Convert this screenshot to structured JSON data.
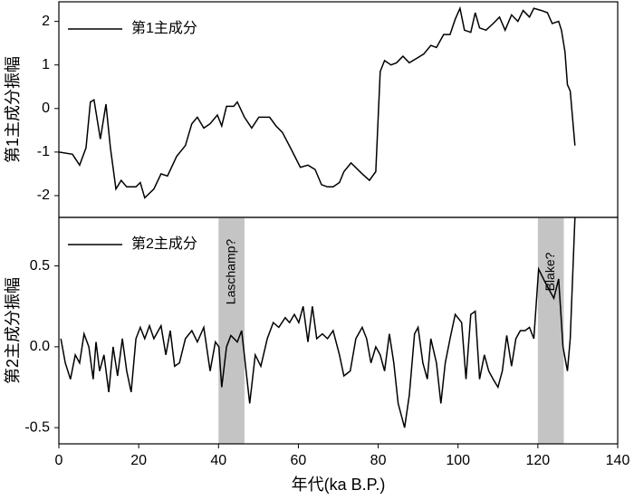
{
  "chart_data": [
    {
      "type": "line",
      "ylabel": "第1主成分振幅",
      "legend": "upper left",
      "xlim": [
        0,
        140
      ],
      "ylim": [
        -2.5,
        2.45
      ],
      "yticks": [
        -2,
        -1,
        0,
        1,
        2
      ],
      "series": [
        {
          "name": "第1主成分",
          "color": "#000000",
          "x": [
            0,
            3.4,
            5.2,
            6.8,
            7.9,
            8.8,
            10.4,
            11.8,
            12.9,
            14.3,
            15.6,
            17,
            19.3,
            20.4,
            21.5,
            23.8,
            25.6,
            27.2,
            29.5,
            31.7,
            33.3,
            34.7,
            36.3,
            37.9,
            39.7,
            40.8,
            42,
            43.8,
            44.7,
            46.5,
            48.3,
            50.1,
            52.8,
            54.4,
            56,
            58.3,
            60.5,
            62.4,
            64.2,
            65.8,
            67.3,
            68.7,
            70.3,
            71.4,
            73.2,
            76,
            77.8,
            79.4,
            80.5,
            81.6,
            83.2,
            84.6,
            86.2,
            87.8,
            89.6,
            91.4,
            93.2,
            94.6,
            96.4,
            98,
            99.3,
            100.5,
            101.6,
            103.2,
            104.3,
            105.4,
            107,
            108.8,
            110.4,
            111.8,
            113.4,
            115,
            116.3,
            117.9,
            119,
            120.9,
            122.4,
            123.6,
            125.2,
            125.9,
            126.8,
            127.4,
            128.1,
            129.3
          ],
          "values": [
            -1.0,
            -1.05,
            -1.3,
            -0.9,
            0.15,
            0.2,
            -0.7,
            0.1,
            -0.9,
            -1.85,
            -1.65,
            -1.8,
            -1.8,
            -1.7,
            -2.05,
            -1.85,
            -1.5,
            -1.55,
            -1.1,
            -0.85,
            -0.35,
            -0.2,
            -0.45,
            -0.35,
            -0.15,
            -0.4,
            0.05,
            0.05,
            0.15,
            -0.2,
            -0.45,
            -0.2,
            -0.2,
            -0.4,
            -0.55,
            -0.95,
            -1.35,
            -1.3,
            -1.4,
            -1.75,
            -1.8,
            -1.8,
            -1.7,
            -1.45,
            -1.25,
            -1.5,
            -1.65,
            -1.45,
            0.85,
            1.1,
            1.0,
            1.05,
            1.2,
            1.05,
            1.15,
            1.25,
            1.45,
            1.4,
            1.7,
            1.7,
            2.05,
            2.3,
            1.8,
            1.75,
            2.2,
            1.85,
            1.8,
            1.95,
            2.1,
            1.8,
            2.15,
            2.0,
            2.25,
            2.1,
            2.3,
            2.25,
            2.2,
            1.95,
            2.0,
            1.8,
            1.3,
            0.55,
            0.4,
            -0.85
          ]
        }
      ]
    },
    {
      "type": "line",
      "ylabel": "第2主成分振幅",
      "xlabel": "年代(ka B.P.)",
      "legend": "upper left",
      "xlim": [
        0,
        140
      ],
      "xticks": [
        0,
        20,
        40,
        60,
        80,
        100,
        120,
        140
      ],
      "ylim": [
        -0.6,
        0.8
      ],
      "yticks": [
        -0.5,
        {
          "value": 0,
          "label": "0.0"
        },
        0.5
      ],
      "bands": [
        {
          "x": [
            40,
            46.5
          ],
          "label": "Laschamp?"
        },
        {
          "x": [
            120,
            126.5
          ],
          "label": "Blake?"
        }
      ],
      "series": [
        {
          "name": "第2主成分",
          "color": "#000000",
          "x": [
            0.5,
            1.6,
            2.9,
            4.1,
            5.2,
            6.3,
            7.5,
            8.6,
            9.3,
            10.2,
            11.3,
            12.5,
            13.6,
            14.7,
            15.9,
            17,
            18.1,
            19.3,
            20.4,
            21.5,
            22.7,
            23.8,
            25.6,
            26.8,
            27.9,
            29,
            30.2,
            31.7,
            33.3,
            34.7,
            36.3,
            37.9,
            39.2,
            40.1,
            40.8,
            42,
            43.1,
            44.7,
            45.8,
            47.8,
            49.2,
            50.6,
            52.2,
            53.7,
            55.1,
            56.7,
            57.8,
            59,
            60.1,
            61.2,
            62.4,
            63.5,
            64.6,
            66,
            67.3,
            68.7,
            70.3,
            71.4,
            73,
            74.4,
            76,
            77.1,
            78.2,
            79.4,
            80.5,
            81.6,
            82.8,
            83.9,
            85,
            86.6,
            87.8,
            89.1,
            90,
            91.2,
            92.3,
            93.2,
            94.6,
            95.7,
            96.8,
            98,
            99.3,
            100.9,
            102,
            103.2,
            104.3,
            105.4,
            106.6,
            107.7,
            108.8,
            110,
            111.1,
            112.2,
            113.4,
            114.5,
            115.6,
            116.8,
            117.9,
            119,
            120.2,
            121.8,
            122.9,
            124,
            125.2,
            126.3,
            127.4,
            128.1,
            129.3
          ],
          "values": [
            0.05,
            -0.1,
            -0.2,
            -0.05,
            -0.1,
            0.08,
            0.0,
            -0.2,
            0.03,
            -0.15,
            -0.05,
            -0.28,
            0.0,
            -0.18,
            0.05,
            -0.15,
            -0.28,
            0.05,
            0.12,
            0.05,
            0.13,
            0.05,
            0.13,
            -0.05,
            0.1,
            -0.12,
            -0.1,
            0.05,
            0.1,
            0.03,
            0.12,
            -0.15,
            0.03,
            0.0,
            -0.25,
            0.0,
            0.07,
            0.03,
            0.1,
            -0.35,
            -0.05,
            -0.12,
            0.05,
            0.15,
            0.12,
            0.18,
            0.15,
            0.2,
            0.15,
            0.25,
            0.03,
            0.25,
            0.05,
            0.08,
            0.05,
            0.1,
            -0.05,
            -0.18,
            -0.15,
            0.05,
            0.12,
            0.05,
            -0.1,
            0.0,
            -0.05,
            -0.15,
            0.08,
            -0.1,
            -0.35,
            -0.5,
            -0.3,
            0.08,
            0.12,
            -0.1,
            -0.2,
            0.05,
            -0.1,
            -0.35,
            -0.1,
            0.05,
            0.2,
            0.15,
            -0.2,
            0.2,
            0.22,
            -0.2,
            -0.05,
            -0.15,
            -0.2,
            -0.25,
            -0.15,
            0.07,
            -0.12,
            0.05,
            0.1,
            0.1,
            0.12,
            0.05,
            0.48,
            0.4,
            0.35,
            0.3,
            0.42,
            0.0,
            -0.15,
            0.05,
            0.8
          ]
        }
      ]
    }
  ]
}
